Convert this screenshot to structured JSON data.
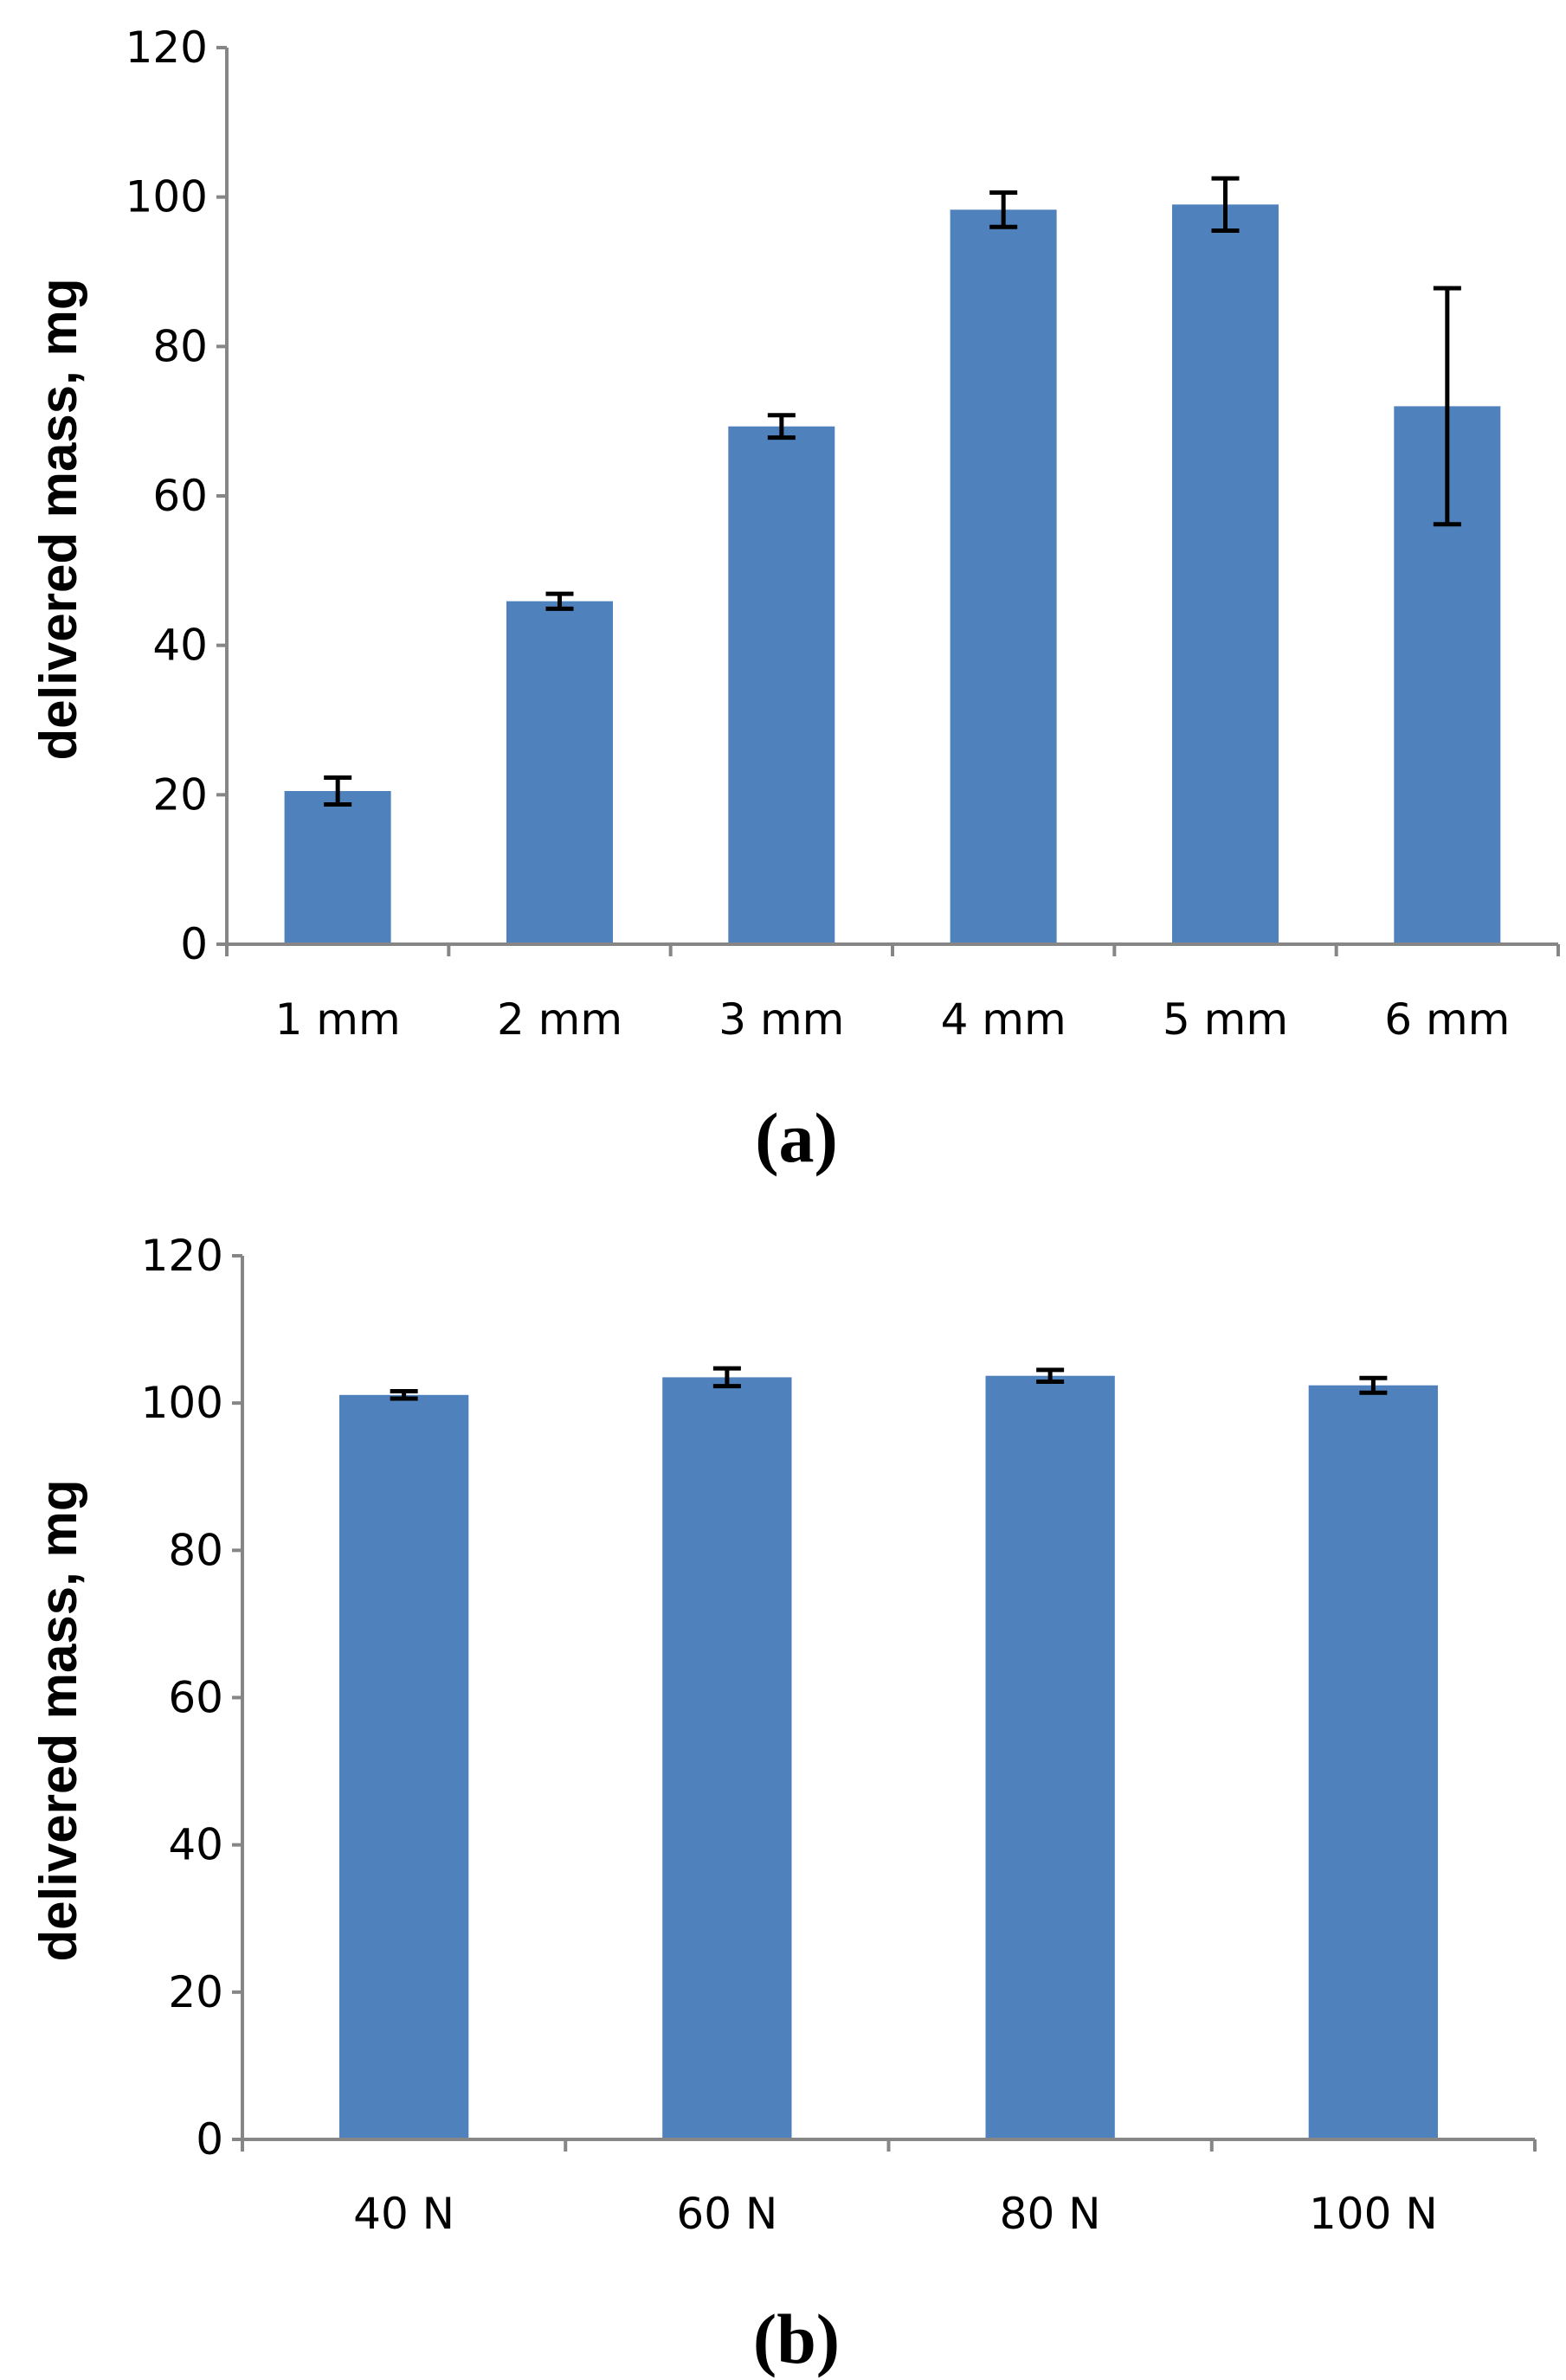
{
  "chart_data": [
    {
      "panel_label": "(a)",
      "type": "bar",
      "title": "",
      "xlabel": "",
      "ylabel": "delivered mass, mg",
      "ylim": [
        0,
        120
      ],
      "yticks": [
        "0",
        "20",
        "40",
        "60",
        "80",
        "100",
        "120"
      ],
      "grid": false,
      "legend": "none",
      "categories": [
        "1 mm",
        "2 mm",
        "3 mm",
        "4 mm",
        "5 mm",
        "6 mm"
      ],
      "values": [
        20.5,
        45.9,
        69.3,
        98.3,
        99.0,
        72.0
      ],
      "errors": [
        1.8,
        1.0,
        1.5,
        2.3,
        3.5,
        15.8
      ],
      "bar_color": "#4f81bd",
      "error_bar_color": "#000000",
      "axis_color": "#868686"
    },
    {
      "panel_label": "(b)",
      "type": "bar",
      "title": "",
      "xlabel": "",
      "ylabel": "delivered mass, mg",
      "ylim": [
        0,
        120
      ],
      "yticks": [
        "0",
        "20",
        "40",
        "60",
        "80",
        "100",
        "120"
      ],
      "grid": false,
      "legend": "none",
      "categories": [
        "40 N",
        "60 N",
        "80 N",
        "100 N"
      ],
      "values": [
        101.1,
        103.5,
        103.7,
        102.4
      ],
      "errors": [
        0.5,
        1.2,
        0.8,
        1.0
      ],
      "bar_color": "#4f81bd",
      "error_bar_color": "#000000",
      "axis_color": "#868686"
    }
  ]
}
